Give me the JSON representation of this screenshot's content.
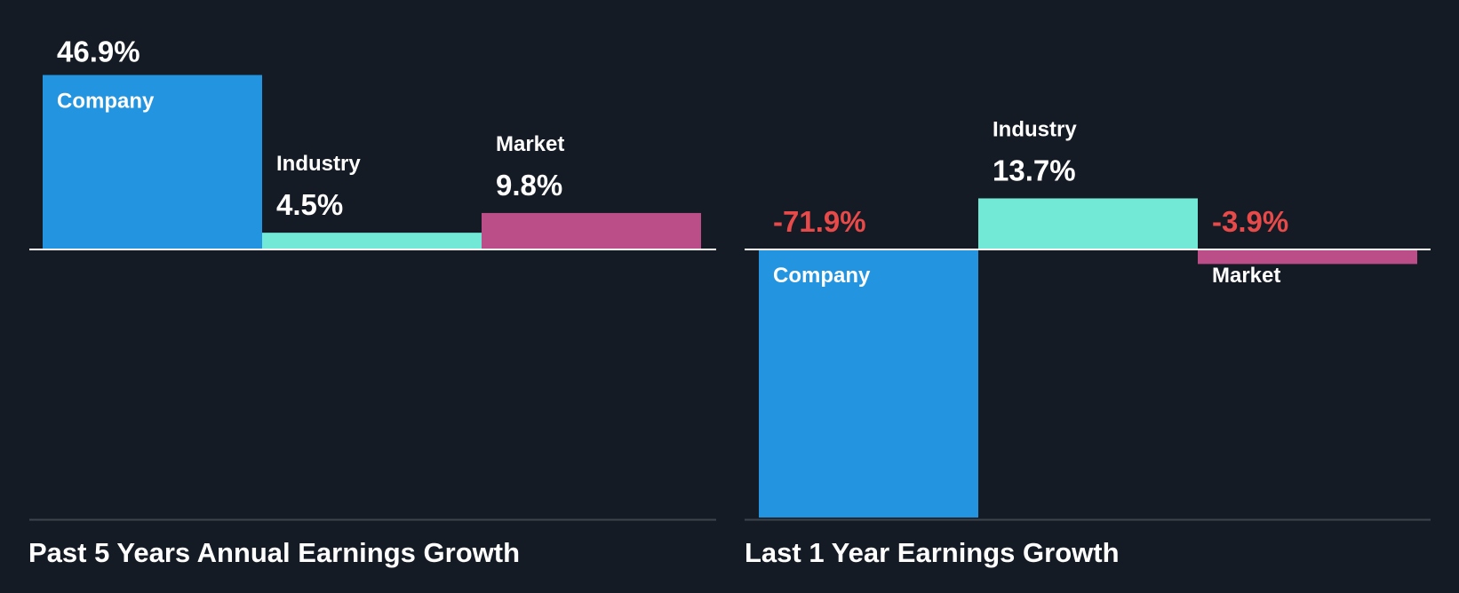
{
  "colors": {
    "background": "#151b24",
    "company": "#2394e0",
    "industry": "#72e8d6",
    "market": "#bb4d88",
    "label_text": "#ffffff",
    "negative_value": "#e84a4a",
    "baseline": "#ffffff",
    "bottom_rule": "#3e444d"
  },
  "chart_data": [
    {
      "type": "bar",
      "title": "Past 5 Years Annual Earnings Growth",
      "categories": [
        "Company",
        "Industry",
        "Market"
      ],
      "values": [
        46.9,
        4.5,
        9.8
      ],
      "value_labels": [
        "46.9%",
        "4.5%",
        "9.8%"
      ],
      "unit": "%",
      "ylim": [
        -72.5,
        47.6
      ],
      "grid": false,
      "legend": "none"
    },
    {
      "type": "bar",
      "title": "Last 1 Year Earnings Growth",
      "categories": [
        "Company",
        "Industry",
        "Market"
      ],
      "values": [
        -71.9,
        13.7,
        -3.9
      ],
      "value_labels": [
        "-71.9%",
        "13.7%",
        "-3.9%"
      ],
      "unit": "%",
      "ylim": [
        -71.9,
        22.5
      ],
      "grid": false,
      "legend": "none"
    }
  ]
}
